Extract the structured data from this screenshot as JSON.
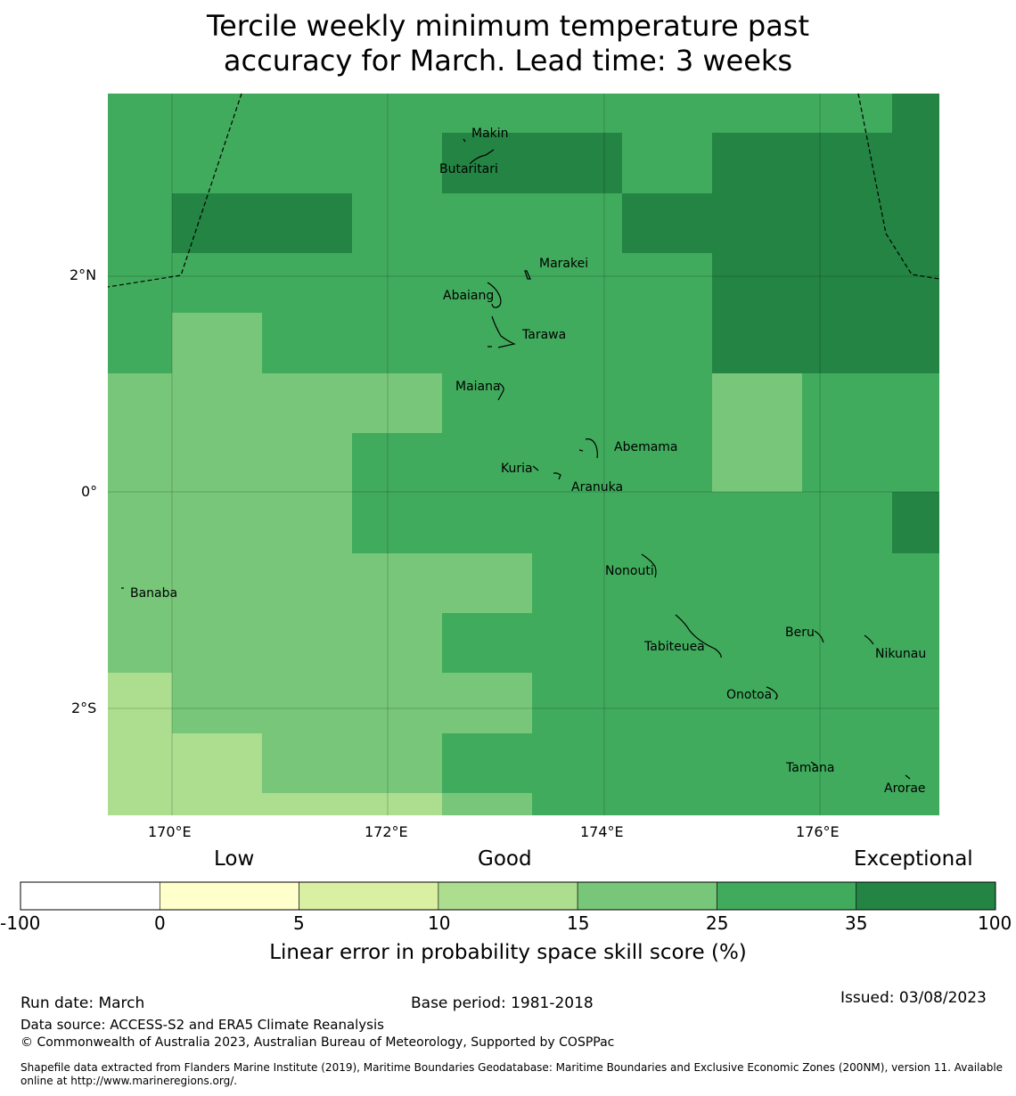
{
  "title": {
    "line1": "Tercile weekly minimum temperature past",
    "line2": "accuracy for March. Lead time: 3 weeks"
  },
  "map": {
    "lat_labels": [
      "2°N",
      "0°",
      "2°S"
    ],
    "lon_labels": [
      "170°E",
      "172°E",
      "174°E",
      "176°E"
    ],
    "places": [
      "Makin",
      "Butaritari",
      "Marakei",
      "Abaiang",
      "Tarawa",
      "Maiana",
      "Abemama",
      "Kuria",
      "Aranuka",
      "Banaba",
      "Nonouti",
      "Beru",
      "Tabiteuea",
      "Nikunau",
      "Onotoa",
      "Tamana",
      "Arorae"
    ],
    "grid_colors": [
      "#78c679",
      "#41ab5d",
      "#238443",
      "#addd8e"
    ]
  },
  "colorbar": {
    "category_low": "Low",
    "category_good": "Good",
    "category_exceptional": "Exceptional",
    "ticks": [
      "-100",
      "0",
      "5",
      "10",
      "15",
      "25",
      "35",
      "100"
    ],
    "colors": [
      "#ffffff",
      "#ffffcc",
      "#d9f0a3",
      "#addd8e",
      "#78c679",
      "#41ab5d",
      "#238443"
    ],
    "label": "Linear error in probability space skill score (%)"
  },
  "footer": {
    "run_date": "Run date: March",
    "base_period": "Base period: 1981-2018",
    "issued": "Issued: 03/08/2023",
    "data_source": "Data source: ACCESS-S2 and ERA5 Climate Reanalysis",
    "copyright": "© Commonwealth of Australia 2023, Australian Bureau of Meteorology, Supported by COSPPac",
    "shapefile_line1": "Shapefile data extracted from Flanders Marine Institute (2019), Maritime Boundaries Geodatabase: Maritime Boundaries and Exclusive Economic Zones (200NM), version 11. Available",
    "shapefile_line2": "online at http://www.marineregions.org/."
  }
}
